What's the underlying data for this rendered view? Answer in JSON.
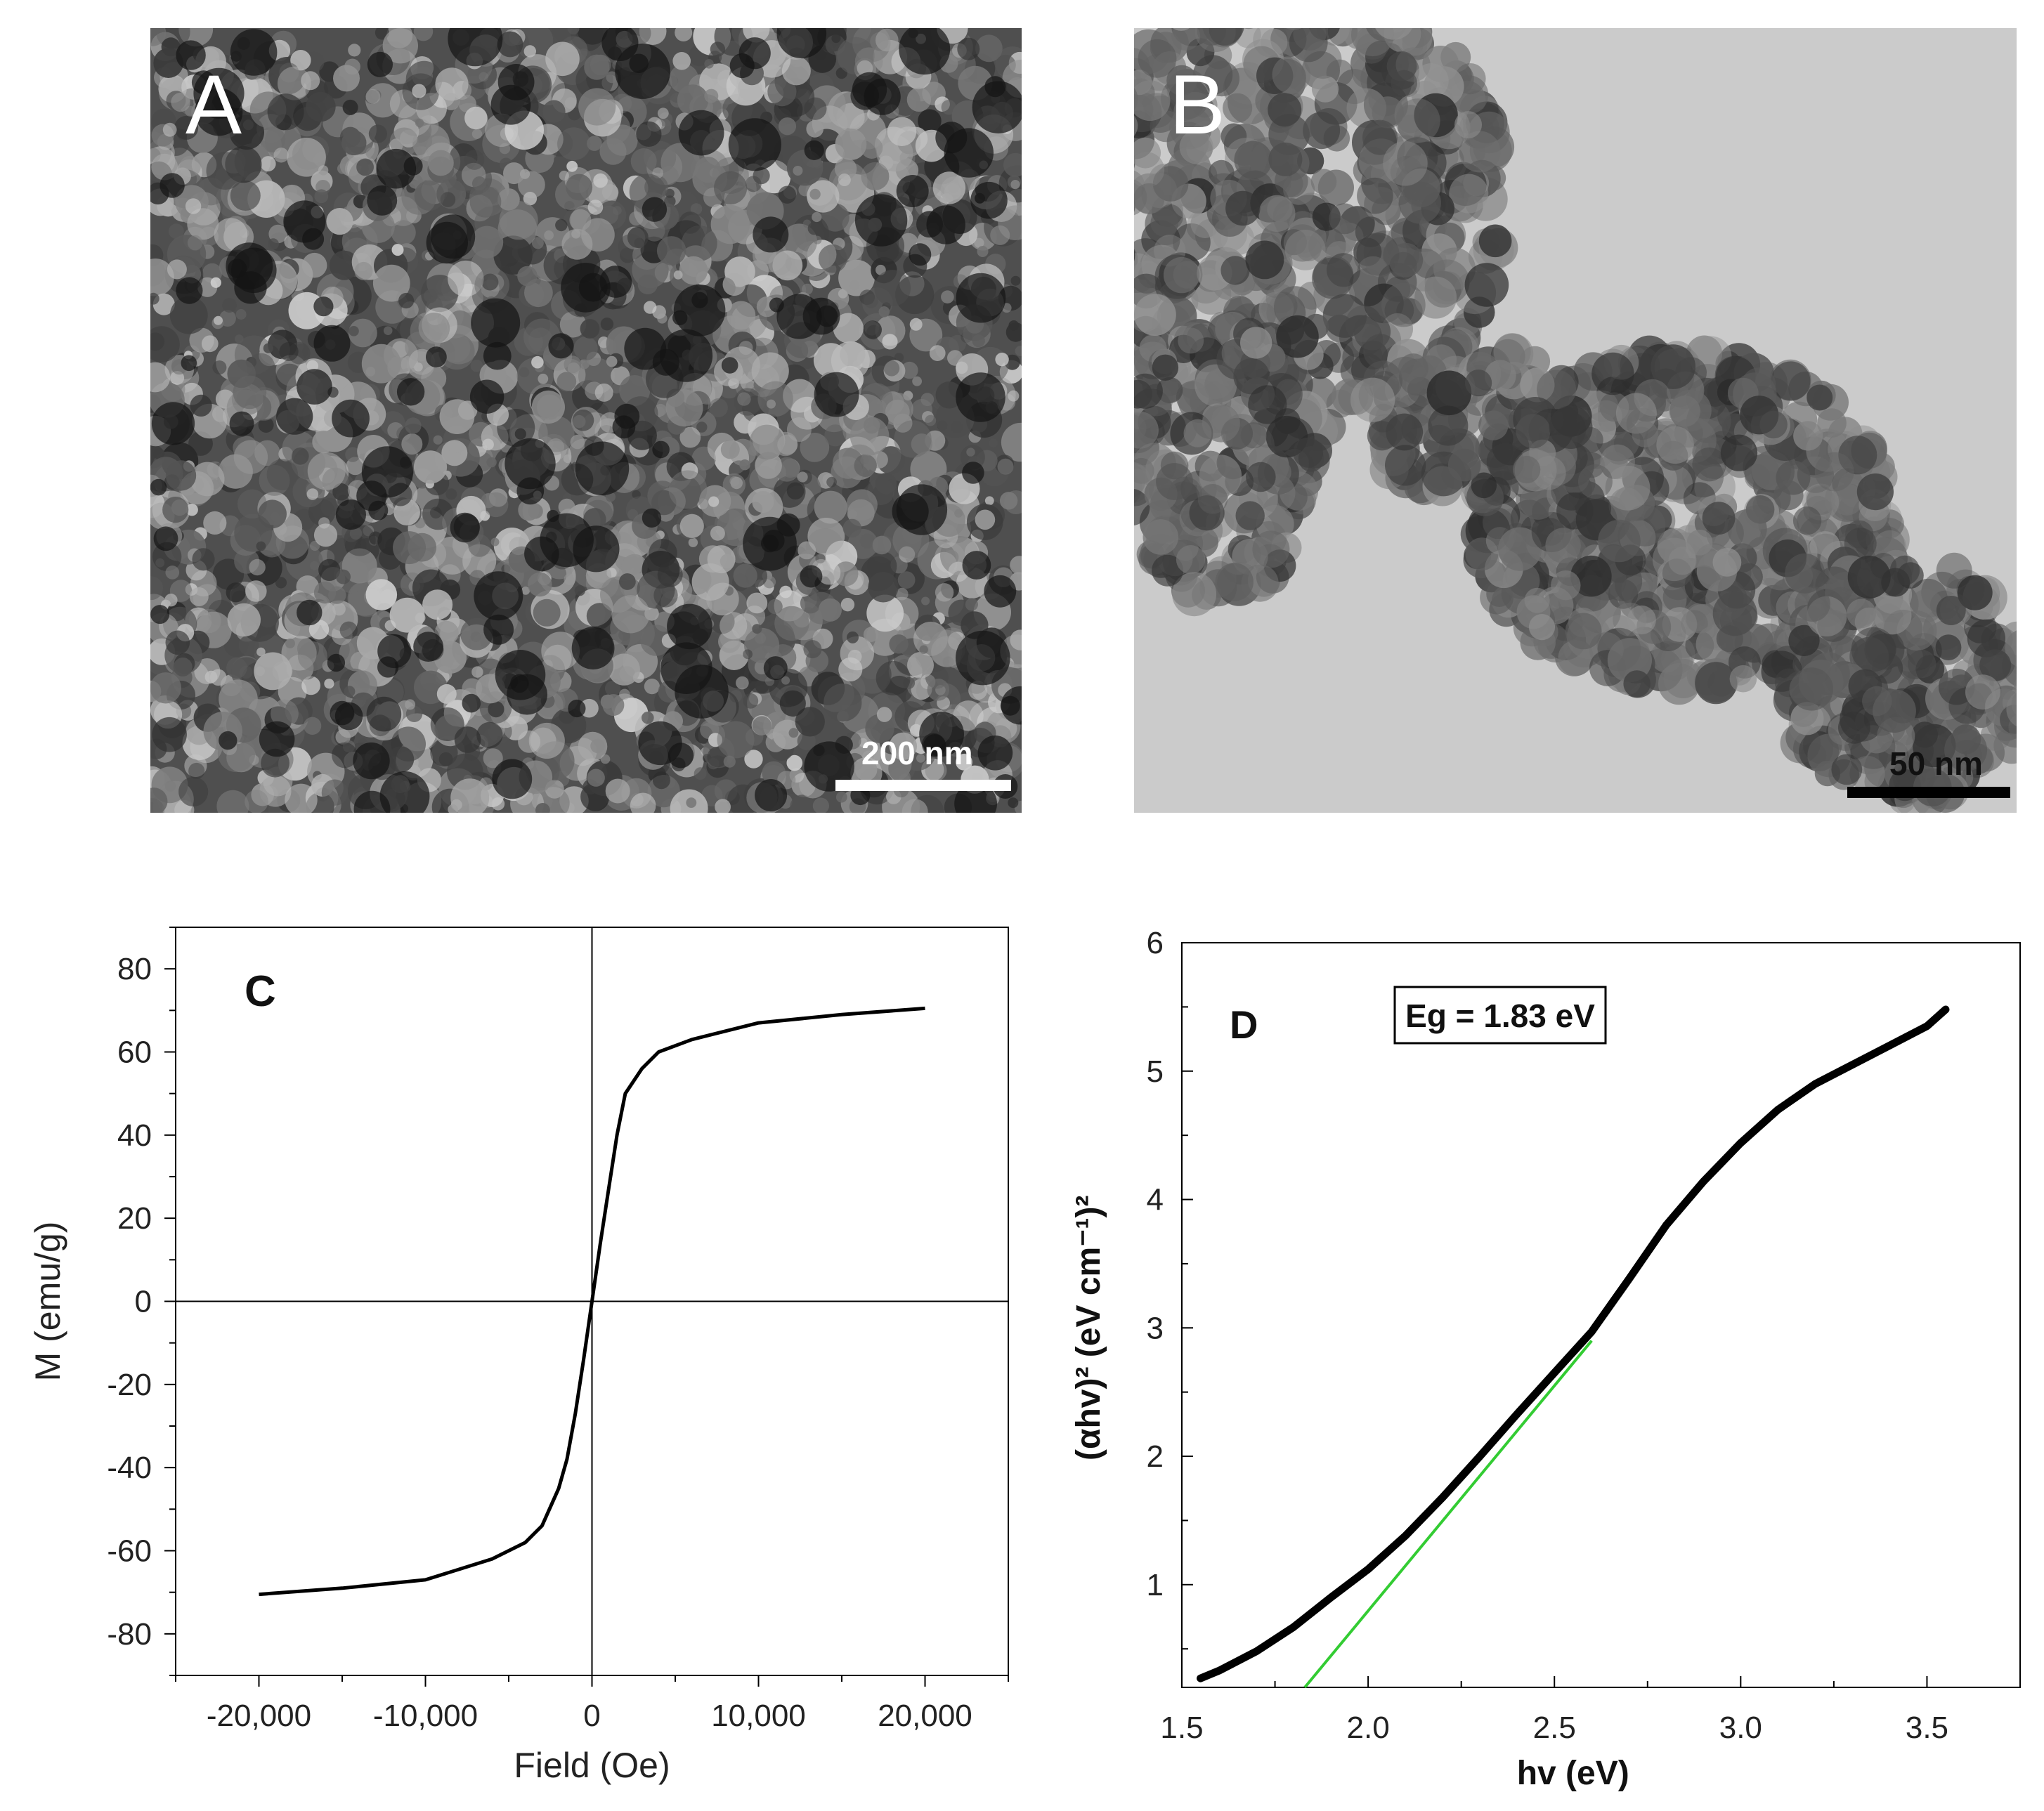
{
  "panels": {
    "A": {
      "letter": "A",
      "scale_label": "200 nm",
      "kind": "SEM micrograph"
    },
    "B": {
      "letter": "B",
      "scale_label": "50 nm",
      "kind": "TEM micrograph"
    }
  },
  "chart_data": [
    {
      "id": "C",
      "type": "line",
      "panel_label": "C",
      "title": "",
      "xlabel": "Field (Oe)",
      "ylabel": "M (emu/g)",
      "xlim": [
        -25000,
        25000
      ],
      "ylim": [
        -90,
        90
      ],
      "xticks": [
        -20000,
        -10000,
        0,
        10000,
        20000
      ],
      "xtick_labels": [
        "-20,000",
        "-10,000",
        "0",
        "10,000",
        "20,000"
      ],
      "yticks": [
        -80,
        -60,
        -40,
        -20,
        0,
        20,
        40,
        60,
        80
      ],
      "ytick_labels": [
        "-80",
        "-60",
        "-40",
        "-20",
        "0",
        "20",
        "40",
        "60",
        "80"
      ],
      "zero_lines": true,
      "grid": false,
      "line_color": "#000000",
      "series": [
        {
          "x": [
            -20000,
            -15000,
            -10000,
            -6000,
            -4000,
            -3000,
            -2000,
            -1500,
            -1000,
            -500,
            0,
            500,
            1000,
            1500,
            2000,
            3000,
            4000,
            6000,
            10000,
            15000,
            20000
          ],
          "y": [
            -70.5,
            -69,
            -67,
            -62,
            -58,
            -54,
            -45,
            -38,
            -27,
            -14,
            0,
            14,
            27,
            40,
            50,
            56,
            60,
            63,
            67,
            69,
            70.5
          ]
        }
      ]
    },
    {
      "id": "D",
      "type": "line",
      "panel_label": "D",
      "title": "",
      "xlabel": "hv (eV)",
      "ylabel": "(αhv)² (eV cm⁻¹)²",
      "annotation": "Eg = 1.83 eV",
      "xlim": [
        1.5,
        3.75
      ],
      "ylim": [
        0.2,
        6
      ],
      "xticks": [
        1.5,
        2.0,
        2.5,
        3.0,
        3.5
      ],
      "xtick_labels": [
        "1.5",
        "2.0",
        "2.5",
        "3.0",
        "3.5"
      ],
      "yticks": [
        1,
        2,
        3,
        4,
        5,
        6
      ],
      "ytick_labels": [
        "1",
        "2",
        "3",
        "4",
        "5",
        "6"
      ],
      "grid": false,
      "colors": {
        "data": "#000000",
        "fit": "#33cc33"
      },
      "series": [
        {
          "x": [
            1.55,
            1.6,
            1.7,
            1.8,
            1.9,
            2.0,
            2.1,
            2.2,
            2.3,
            2.4,
            2.5,
            2.6,
            2.7,
            2.8,
            2.9,
            3.0,
            3.1,
            3.2,
            3.3,
            3.4,
            3.5,
            3.55
          ],
          "y": [
            0.27,
            0.33,
            0.48,
            0.67,
            0.9,
            1.12,
            1.38,
            1.68,
            2.0,
            2.33,
            2.65,
            2.97,
            3.38,
            3.8,
            4.14,
            4.44,
            4.7,
            4.9,
            5.05,
            5.2,
            5.35,
            5.48
          ]
        }
      ],
      "fit_line": {
        "x": [
          1.83,
          2.6
        ],
        "y": [
          0.2,
          2.9
        ]
      }
    }
  ]
}
